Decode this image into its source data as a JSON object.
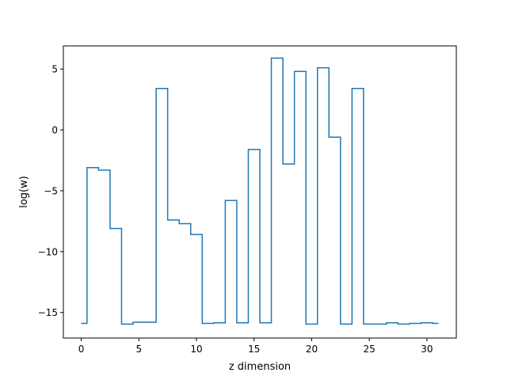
{
  "chart_data": {
    "type": "line",
    "drawstyle": "steps-mid",
    "title": "",
    "xlabel": "z dimension",
    "ylabel": "log(w)",
    "xlim": [
      -1.55,
      32.55
    ],
    "ylim": [
      -17.1,
      6.9
    ],
    "xticks": [
      0,
      5,
      10,
      15,
      20,
      25,
      30
    ],
    "yticks": [
      -15,
      -10,
      -5,
      0,
      5
    ],
    "ytick_labels": [
      "−15",
      "−10",
      "−5",
      "0",
      "5"
    ],
    "grid": false,
    "legend": "none",
    "series": [
      {
        "color": "#1f77b4",
        "x": [
          0,
          1,
          2,
          3,
          4,
          5,
          6,
          7,
          8,
          9,
          10,
          11,
          12,
          13,
          14,
          15,
          16,
          17,
          18,
          19,
          20,
          21,
          22,
          23,
          24,
          25,
          26,
          27,
          28,
          29,
          30,
          31
        ],
        "y": [
          -15.9,
          -3.1,
          -3.3,
          -8.1,
          -15.95,
          -15.8,
          -15.8,
          3.4,
          -7.4,
          -7.7,
          -8.6,
          -15.9,
          -15.85,
          -5.8,
          -15.85,
          -1.6,
          -15.85,
          5.9,
          -2.8,
          4.8,
          -15.95,
          5.1,
          -0.6,
          -15.95,
          3.4,
          -15.95,
          -15.95,
          -15.85,
          -15.95,
          -15.9,
          -15.85,
          -15.9
        ]
      }
    ]
  }
}
